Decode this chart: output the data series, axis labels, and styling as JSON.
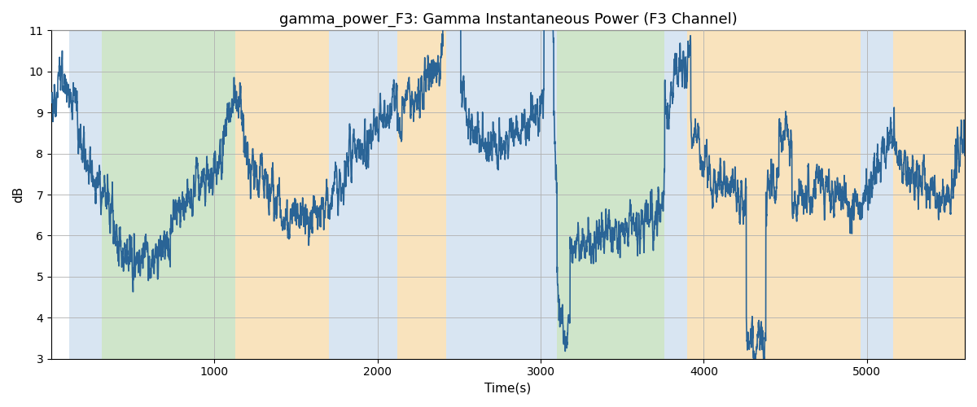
{
  "title": "gamma_power_F3: Gamma Instantaneous Power (F3 Channel)",
  "xlabel": "Time(s)",
  "ylabel": "dB",
  "ylim": [
    3,
    11
  ],
  "xlim": [
    0,
    5600
  ],
  "yticks": [
    3,
    4,
    5,
    6,
    7,
    8,
    9,
    10,
    11
  ],
  "xticks": [
    1000,
    2000,
    3000,
    4000,
    5000
  ],
  "line_color": "#2a6496",
  "line_width": 1.2,
  "bg_color": "#ffffff",
  "grid_color": "#b0b0b0",
  "title_fontsize": 13,
  "label_fontsize": 11,
  "bands": [
    {
      "start": 110,
      "end": 310,
      "color": "#b8d0e8",
      "alpha": 0.55
    },
    {
      "start": 310,
      "end": 1130,
      "color": "#a8d0a0",
      "alpha": 0.55
    },
    {
      "start": 1130,
      "end": 1700,
      "color": "#f5cc88",
      "alpha": 0.55
    },
    {
      "start": 1700,
      "end": 2120,
      "color": "#b8d0e8",
      "alpha": 0.55
    },
    {
      "start": 2120,
      "end": 2420,
      "color": "#f5cc88",
      "alpha": 0.55
    },
    {
      "start": 2420,
      "end": 3100,
      "color": "#b8d0e8",
      "alpha": 0.55
    },
    {
      "start": 3100,
      "end": 3760,
      "color": "#a8d0a0",
      "alpha": 0.55
    },
    {
      "start": 3760,
      "end": 3900,
      "color": "#b8d0e8",
      "alpha": 0.55
    },
    {
      "start": 3900,
      "end": 4960,
      "color": "#f5cc88",
      "alpha": 0.55
    },
    {
      "start": 4960,
      "end": 5160,
      "color": "#b8d0e8",
      "alpha": 0.55
    },
    {
      "start": 5160,
      "end": 5600,
      "color": "#f5cc88",
      "alpha": 0.55
    }
  ],
  "env_t": [
    0,
    50,
    150,
    250,
    350,
    500,
    650,
    800,
    950,
    1050,
    1150,
    1300,
    1450,
    1600,
    1750,
    1900,
    2050,
    2200,
    2350,
    2450,
    2520,
    2600,
    2700,
    2850,
    3000,
    3060,
    3120,
    3200,
    3350,
    3500,
    3650,
    3750,
    3850,
    3950,
    4050,
    4150,
    4250,
    4350,
    4450,
    4550,
    4650,
    4750,
    4850,
    4950,
    5050,
    5150,
    5250,
    5400,
    5600
  ],
  "env_v": [
    7.8,
    9.3,
    8.7,
    7.5,
    6.8,
    6.3,
    6.2,
    6.8,
    7.2,
    7.8,
    8.5,
    7.2,
    6.5,
    6.5,
    7.0,
    7.8,
    8.2,
    8.6,
    9.2,
    10.2,
    9.2,
    8.5,
    8.2,
    8.5,
    9.0,
    10.2,
    6.0,
    6.3,
    6.5,
    6.6,
    6.8,
    7.2,
    8.8,
    8.5,
    7.2,
    7.2,
    7.0,
    6.8,
    7.5,
    6.8,
    7.0,
    7.2,
    7.0,
    6.8,
    7.5,
    8.5,
    7.5,
    7.0,
    7.0
  ],
  "noise_std": 0.72,
  "hf_std": 0.38,
  "hf_ar": 0.62,
  "seed": 137,
  "n_points": 5600,
  "time_start": 0,
  "time_end": 5600
}
